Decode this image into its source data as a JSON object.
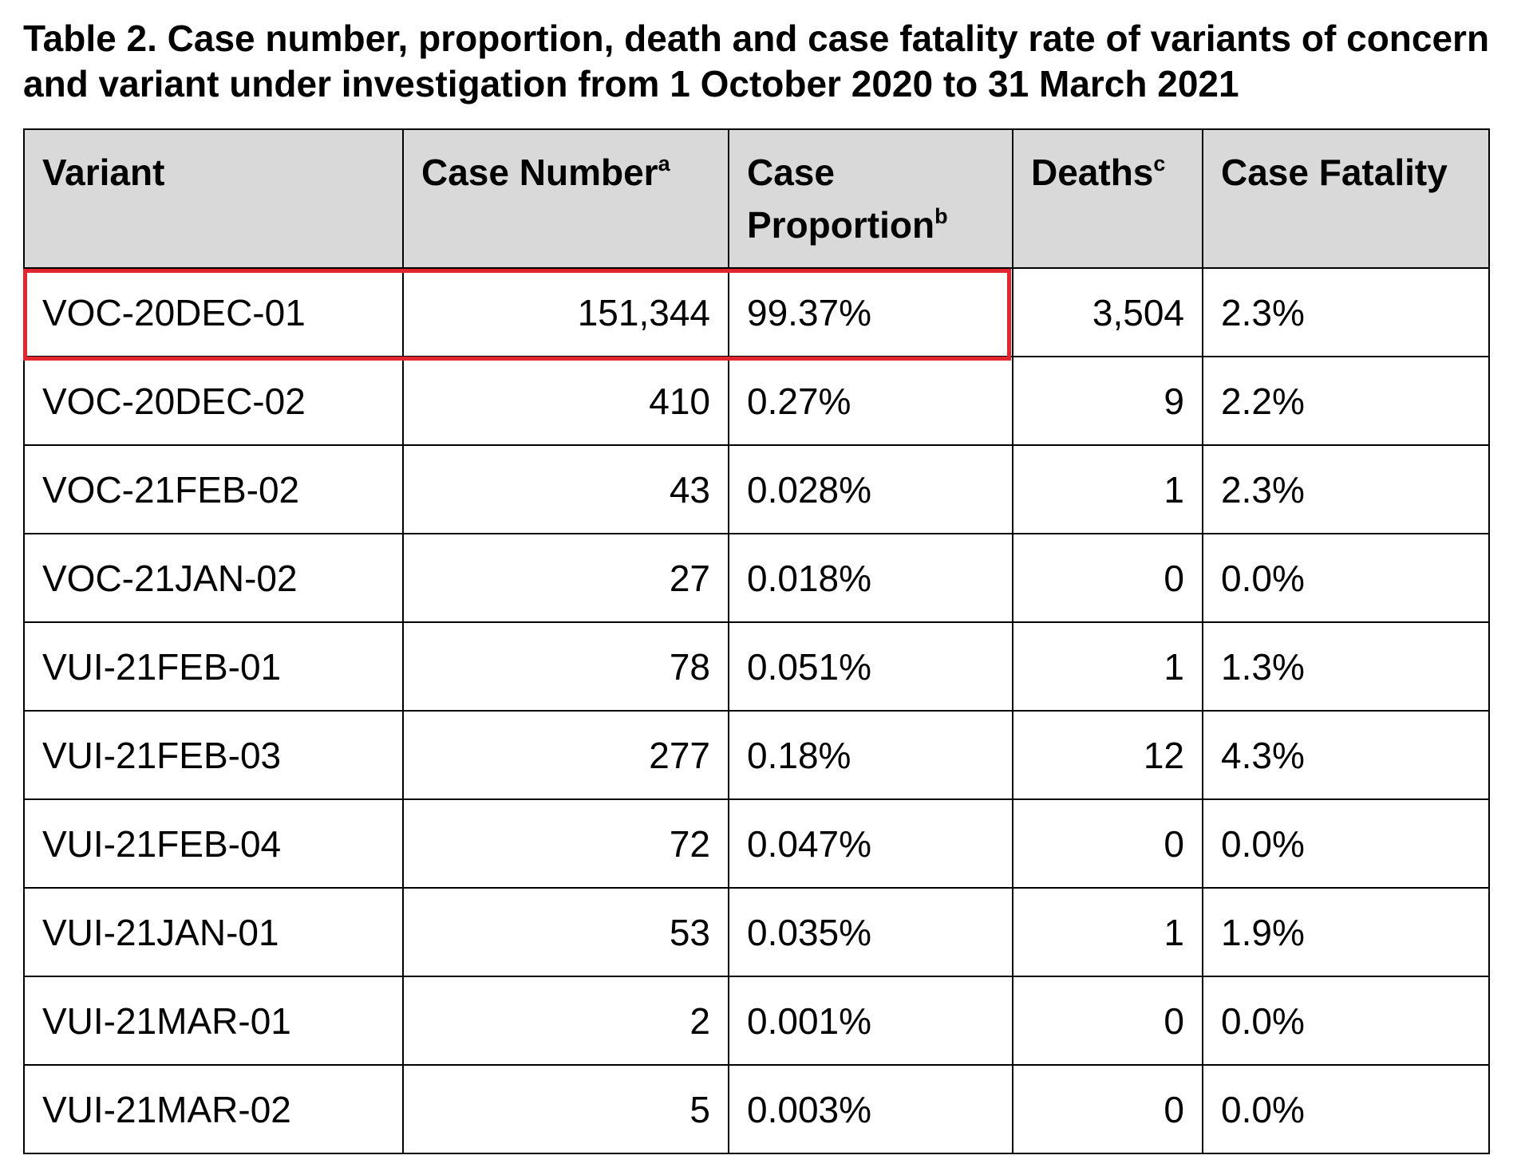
{
  "title": "Table 2. Case number, proportion, death and case fatality rate of variants of concern and variant under investigation from 1 October 2020 to 31 March 2021",
  "headers": {
    "variant": "Variant",
    "case_number": "Case Number",
    "case_number_note": "a",
    "case_proportion": "Case Proportion",
    "case_proportion_note": "b",
    "deaths": "Deaths",
    "deaths_note": "c",
    "case_fatality": "Case Fatality"
  },
  "highlight": {
    "row": 0,
    "columns": [
      "Variant",
      "Case Number",
      "Case Proportion"
    ],
    "color": "#e32530"
  },
  "rows": [
    {
      "variant": "VOC-20DEC-01",
      "case_number": "151,344",
      "case_proportion": "99.37%",
      "deaths": "3,504",
      "case_fatality": "2.3%"
    },
    {
      "variant": "VOC-20DEC-02",
      "case_number": "410",
      "case_proportion": "0.27%",
      "deaths": "9",
      "case_fatality": "2.2%"
    },
    {
      "variant": "VOC-21FEB-02",
      "case_number": "43",
      "case_proportion": "0.028%",
      "deaths": "1",
      "case_fatality": "2.3%"
    },
    {
      "variant": "VOC-21JAN-02",
      "case_number": "27",
      "case_proportion": "0.018%",
      "deaths": "0",
      "case_fatality": "0.0%"
    },
    {
      "variant": "VUI-21FEB-01",
      "case_number": "78",
      "case_proportion": "0.051%",
      "deaths": "1",
      "case_fatality": "1.3%"
    },
    {
      "variant": "VUI-21FEB-03",
      "case_number": "277",
      "case_proportion": "0.18%",
      "deaths": "12",
      "case_fatality": "4.3%"
    },
    {
      "variant": "VUI-21FEB-04",
      "case_number": "72",
      "case_proportion": "0.047%",
      "deaths": "0",
      "case_fatality": "0.0%"
    },
    {
      "variant": "VUI-21JAN-01",
      "case_number": "53",
      "case_proportion": "0.035%",
      "deaths": "1",
      "case_fatality": "1.9%"
    },
    {
      "variant": "VUI-21MAR-01",
      "case_number": "2",
      "case_proportion": "0.001%",
      "deaths": "0",
      "case_fatality": "0.0%"
    },
    {
      "variant": "VUI-21MAR-02",
      "case_number": "5",
      "case_proportion": "0.003%",
      "deaths": "0",
      "case_fatality": "0.0%"
    }
  ]
}
